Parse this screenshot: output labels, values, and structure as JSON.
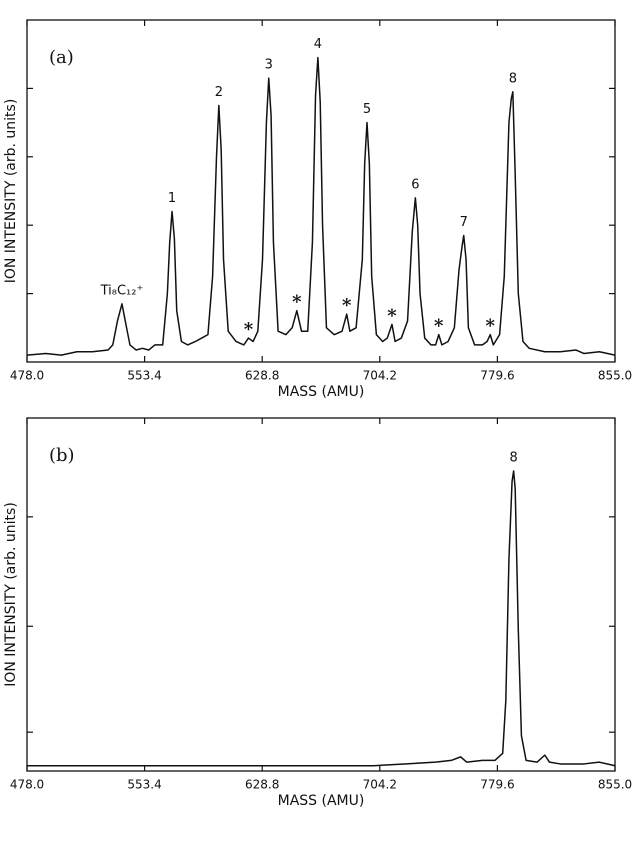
{
  "chart_data": [
    {
      "type": "line",
      "panel_label": "(a)",
      "x_label": "MASS (AMU)",
      "y_label": "ION INTENSITY (arb. units)",
      "color": "#111111",
      "xlim": [
        478,
        855
      ],
      "xticks": [
        {
          "value": 478,
          "label": "478.0"
        },
        553.4,
        628.8,
        704.2,
        779.6,
        {
          "value": 855,
          "label": "855.0"
        }
      ],
      "ylim": [
        0,
        100
      ],
      "yticks": [
        20,
        40,
        60,
        80
      ],
      "x": [
        478,
        490,
        500,
        510,
        520,
        530,
        533,
        536,
        538.9,
        541,
        544,
        548,
        552,
        556,
        560,
        565,
        568,
        569.5,
        571,
        572.5,
        574,
        577,
        581,
        586,
        590,
        594,
        597,
        599.5,
        601,
        602.5,
        604,
        607,
        612,
        617,
        620,
        623,
        626,
        629,
        631.5,
        633,
        634.5,
        636,
        639,
        644,
        648,
        651,
        654,
        658,
        661,
        663,
        664.5,
        666,
        667.5,
        670,
        675,
        680,
        683,
        685,
        689,
        693,
        694.5,
        696,
        697.5,
        699,
        702,
        706,
        709,
        712,
        714,
        718,
        722,
        725,
        727,
        728.5,
        730,
        733,
        737,
        740,
        742,
        744,
        748,
        752,
        755,
        757,
        758,
        759.5,
        761,
        765,
        770,
        773,
        775,
        777,
        781,
        784,
        787,
        788.5,
        789.5,
        791,
        793,
        796,
        800,
        810,
        820,
        830,
        835,
        845,
        855
      ],
      "values": [
        2,
        2.5,
        2,
        3,
        3,
        3.5,
        5,
        12,
        17,
        12,
        5,
        3.5,
        4,
        3.5,
        5,
        5,
        20,
        35,
        44,
        36,
        15,
        6,
        5,
        6,
        7,
        8,
        25,
        60,
        75,
        62,
        30,
        9,
        6,
        5,
        7,
        6,
        9,
        30,
        70,
        83,
        72,
        35,
        9,
        8,
        10,
        15,
        9,
        9,
        35,
        78,
        89,
        76,
        40,
        10,
        8,
        9,
        14,
        9,
        10,
        30,
        58,
        70,
        58,
        25,
        8,
        6,
        7,
        11,
        6,
        7,
        12,
        38,
        48,
        40,
        20,
        7,
        5,
        5,
        8,
        5,
        6,
        10,
        27,
        34,
        37,
        30,
        10,
        5,
        5,
        6,
        8,
        5,
        8,
        25,
        70,
        77,
        79,
        55,
        20,
        6,
        4,
        3,
        3,
        3.5,
        2.5,
        3,
        2
      ],
      "annotations": [
        {
          "text": "Ti₈C₁₂⁺",
          "x": 538.9
        },
        {
          "text": "1",
          "x": 571
        },
        {
          "text": "2",
          "x": 601
        },
        {
          "text": "3",
          "x": 633
        },
        {
          "text": "4",
          "x": 664.5
        },
        {
          "text": "5",
          "x": 696
        },
        {
          "text": "6",
          "x": 727
        },
        {
          "text": "7",
          "x": 758
        },
        {
          "text": "8",
          "x": 789.5
        },
        {
          "text": "*",
          "x": 620
        },
        {
          "text": "*",
          "x": 651
        },
        {
          "text": "*",
          "x": 683
        },
        {
          "text": "*",
          "x": 712
        },
        {
          "text": "*",
          "x": 742
        },
        {
          "text": "*",
          "x": 775
        }
      ]
    },
    {
      "type": "line",
      "panel_label": "(b)",
      "x_label": "MASS (AMU)",
      "y_label": "ION INTENSITY (arb. units)",
      "color": "#111111",
      "xlim": [
        478,
        855
      ],
      "xticks": [
        {
          "value": 478,
          "label": "478.0"
        },
        553.4,
        628.8,
        704.2,
        779.6,
        {
          "value": 855,
          "label": "855.0"
        }
      ],
      "ylim": [
        0,
        100
      ],
      "yticks": [
        11,
        41,
        72
      ],
      "x": [
        478,
        500,
        520,
        540,
        560,
        580,
        600,
        620,
        640,
        660,
        680,
        700,
        720,
        740,
        750,
        756,
        760,
        770,
        778,
        783,
        785,
        787,
        789,
        790,
        791,
        793,
        795,
        798,
        805,
        810,
        813,
        820,
        835,
        845,
        855
      ],
      "values": [
        1.5,
        1.5,
        1.5,
        1.5,
        1.5,
        1.5,
        1.5,
        1.5,
        1.5,
        1.5,
        1.5,
        1.5,
        2,
        2.5,
        3,
        4,
        2.5,
        3,
        3,
        5,
        20,
        60,
        82,
        85,
        80,
        40,
        10,
        3,
        2.5,
        4.5,
        2.5,
        2,
        2,
        2.5,
        1.5
      ],
      "annotations": [
        {
          "text": "8",
          "x": 790
        }
      ]
    }
  ]
}
